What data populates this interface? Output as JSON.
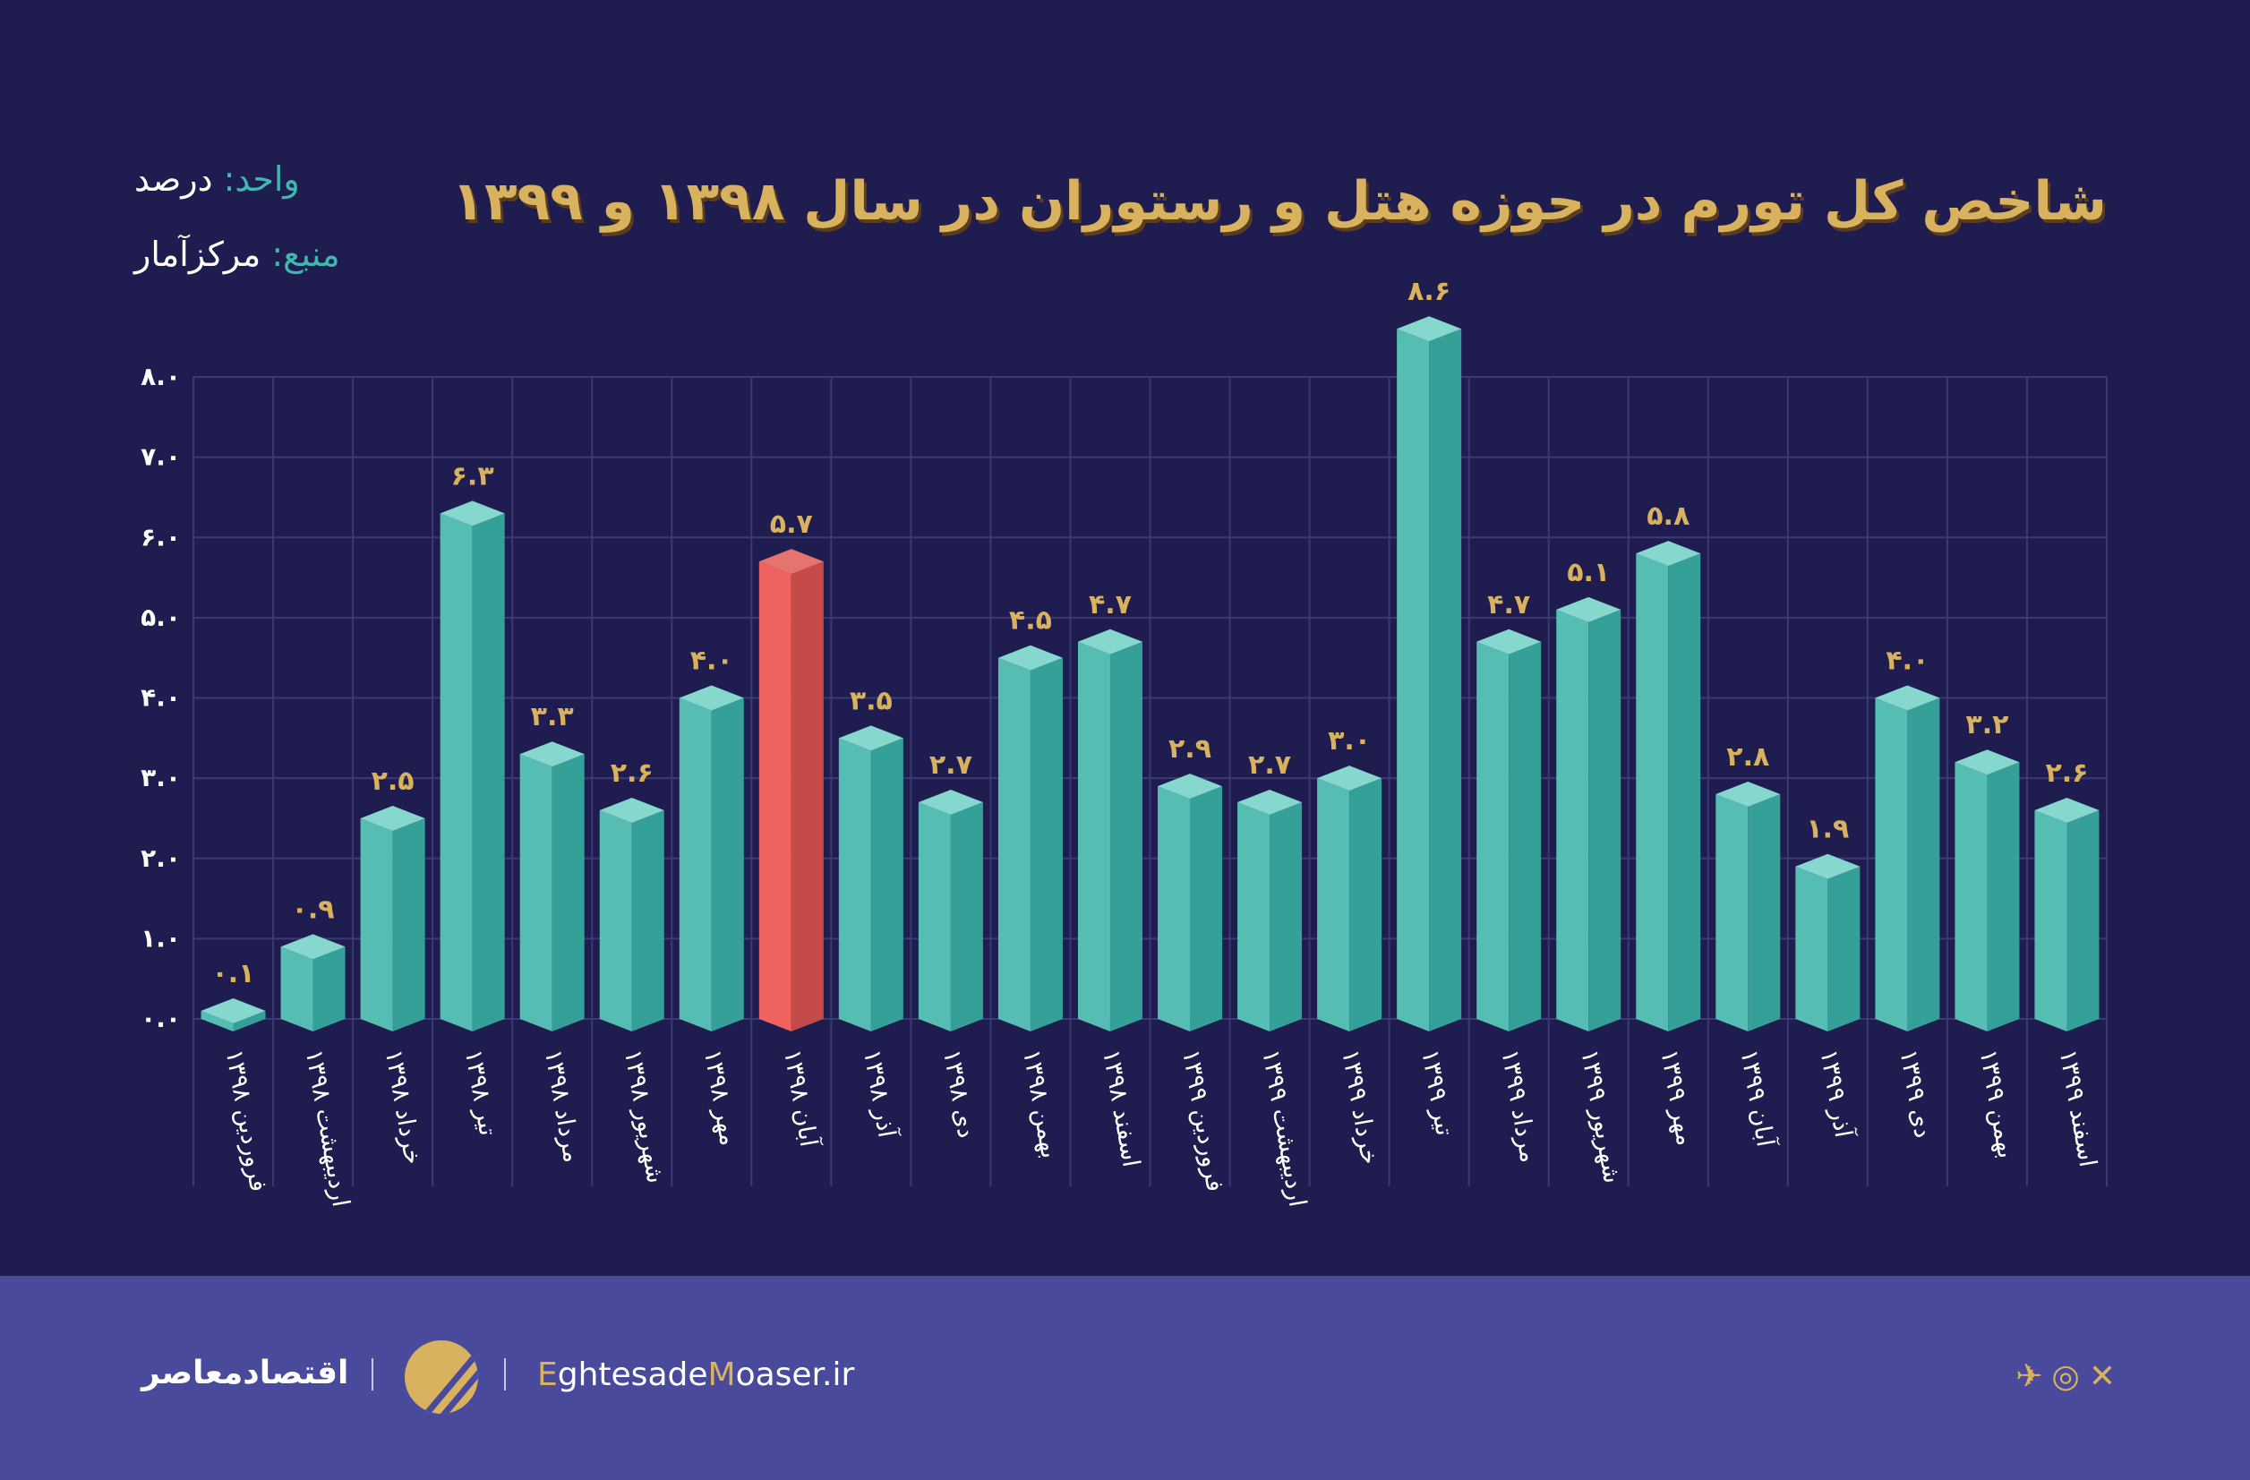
{
  "title": "شاخص کل تورم در حوزه هتل و رستوران در سال ۱۳۹۸ و ۱۳۹۹",
  "unit_label": "واحد:",
  "unit_value": "درصد",
  "source_label": "منبع:",
  "source_value": "مرکزآمار",
  "footer": {
    "brand_fa": "اقتصادمعاصر",
    "site_a": "E",
    "site_b": "ghtesade",
    "site_c": "M",
    "site_d": "oaser.ir",
    "social": [
      "telegram-icon",
      "instagram-icon",
      "x-icon"
    ]
  },
  "colors": {
    "bar": "#4fb8ae",
    "highlight": "#ef5f5b",
    "value_label": "#d9b25f",
    "background": "#1f1d4f",
    "footer": "#4a4a9c"
  },
  "chart_data": {
    "type": "bar",
    "title": "شاخص کل تورم در حوزه هتل و رستوران در سال ۱۳۹۸ و ۱۳۹۹",
    "ylabel": "درصد",
    "ylim": [
      0,
      8
    ],
    "grid": true,
    "yticks": [
      0,
      1,
      2,
      3,
      4,
      5,
      6,
      7,
      8
    ],
    "ytick_labels": [
      "۰.۰",
      "۱.۰",
      "۲.۰",
      "۳.۰",
      "۴.۰",
      "۵.۰",
      "۶.۰",
      "۷.۰",
      "۸.۰"
    ],
    "categories": [
      "فروردین ۱۳۹۸",
      "اردیبهشت ۱۳۹۸",
      "خرداد ۱۳۹۸",
      "تیر ۱۳۹۸",
      "مرداد ۱۳۹۸",
      "شهریور ۱۳۹۸",
      "مهر ۱۳۹۸",
      "آبان ۱۳۹۸",
      "آذر ۱۳۹۸",
      "دی ۱۳۹۸",
      "بهمن ۱۳۹۸",
      "اسفند ۱۳۹۸",
      "فروردین ۱۳۹۹",
      "اردیبهشت ۱۳۹۹",
      "خرداد ۱۳۹۹",
      "تیر ۱۳۹۹",
      "مرداد ۱۳۹۹",
      "شهریور ۱۳۹۹",
      "مهر ۱۳۹۹",
      "آبان ۱۳۹۹",
      "آذر ۱۳۹۹",
      "دی ۱۳۹۹",
      "بهمن ۱۳۹۹",
      "اسفند ۱۳۹۹"
    ],
    "values": [
      0.1,
      0.9,
      2.5,
      6.3,
      3.3,
      2.6,
      4.0,
      5.7,
      3.5,
      2.7,
      4.5,
      4.7,
      2.9,
      2.7,
      3.0,
      8.6,
      4.7,
      5.1,
      5.8,
      2.8,
      1.9,
      4.0,
      3.2,
      2.6
    ],
    "value_labels": [
      "۰.۱",
      "۰.۹",
      "۲.۵",
      "۶.۳",
      "۳.۳",
      "۲.۶",
      "۴.۰",
      "۵.۷",
      "۳.۵",
      "۲.۷",
      "۴.۵",
      "۴.۷",
      "۲.۹",
      "۲.۷",
      "۳.۰",
      "۸.۶",
      "۴.۷",
      "۵.۱",
      "۵.۸",
      "۲.۸",
      "۱.۹",
      "۴.۰",
      "۳.۲",
      "۲.۶"
    ],
    "highlight_index": 7
  }
}
